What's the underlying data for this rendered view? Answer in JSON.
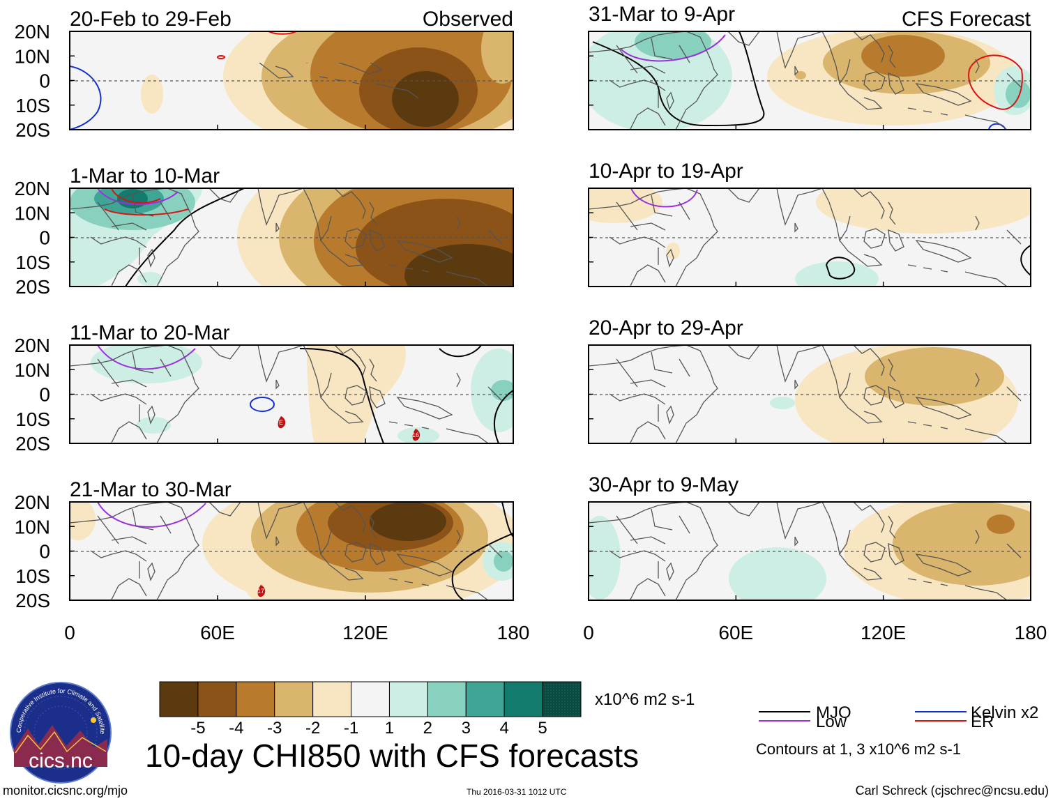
{
  "title": "10-day CHI850 with CFS forecasts",
  "observed_label": "Observed",
  "forecast_label": "CFS Forecast",
  "panels_observed": [
    {
      "period": "20-Feb to 29-Feb"
    },
    {
      "period": "1-Mar to 10-Mar"
    },
    {
      "period": "11-Mar to 20-Mar"
    },
    {
      "period": "21-Mar to 30-Mar"
    }
  ],
  "panels_forecast": [
    {
      "period": "31-Mar to 9-Apr"
    },
    {
      "period": "10-Apr to 19-Apr"
    },
    {
      "period": "20-Apr to 29-Apr"
    },
    {
      "period": "30-Apr to 9-May"
    }
  ],
  "lat_ticks": [
    "20N",
    "10N",
    "0",
    "10S",
    "20S"
  ],
  "lon_ticks": [
    "0",
    "60E",
    "120E",
    "180"
  ],
  "colorbar": {
    "ticks": [
      "-5",
      "-4",
      "-3",
      "-2",
      "-1",
      "1",
      "2",
      "3",
      "4",
      "5"
    ],
    "units": "x10^6 m2 s-1",
    "colors": [
      "#5c3a10",
      "#8b5317",
      "#b87b2e",
      "#d9b56d",
      "#f7e6c1",
      "#f4f4f4",
      "#cdeee4",
      "#88d1bf",
      "#3fa595",
      "#137a6e",
      "#0a4a40"
    ]
  },
  "legend": {
    "items": [
      {
        "label": "MJO",
        "color": "#000000"
      },
      {
        "label": "Kelvin x2",
        "color": "#1030d0"
      },
      {
        "label": "Low",
        "color": "#9b30e0"
      },
      {
        "label": "ER",
        "color": "#e01010"
      }
    ],
    "note": "Contours at 1, 3 x10^6 m2 s-1"
  },
  "logo": {
    "text": "cics.nc",
    "ring_text": "Cooperative Institute for Climate and Satellites"
  },
  "footer": {
    "url": "monitor.cicsnc.org/mjo",
    "timestamp": "Thu 2016-03-31 1012 UTC",
    "author": "Carl Schreck (cjschrec@ncsu.edu)"
  },
  "storm_markers": [
    "E",
    "16",
    "17"
  ]
}
